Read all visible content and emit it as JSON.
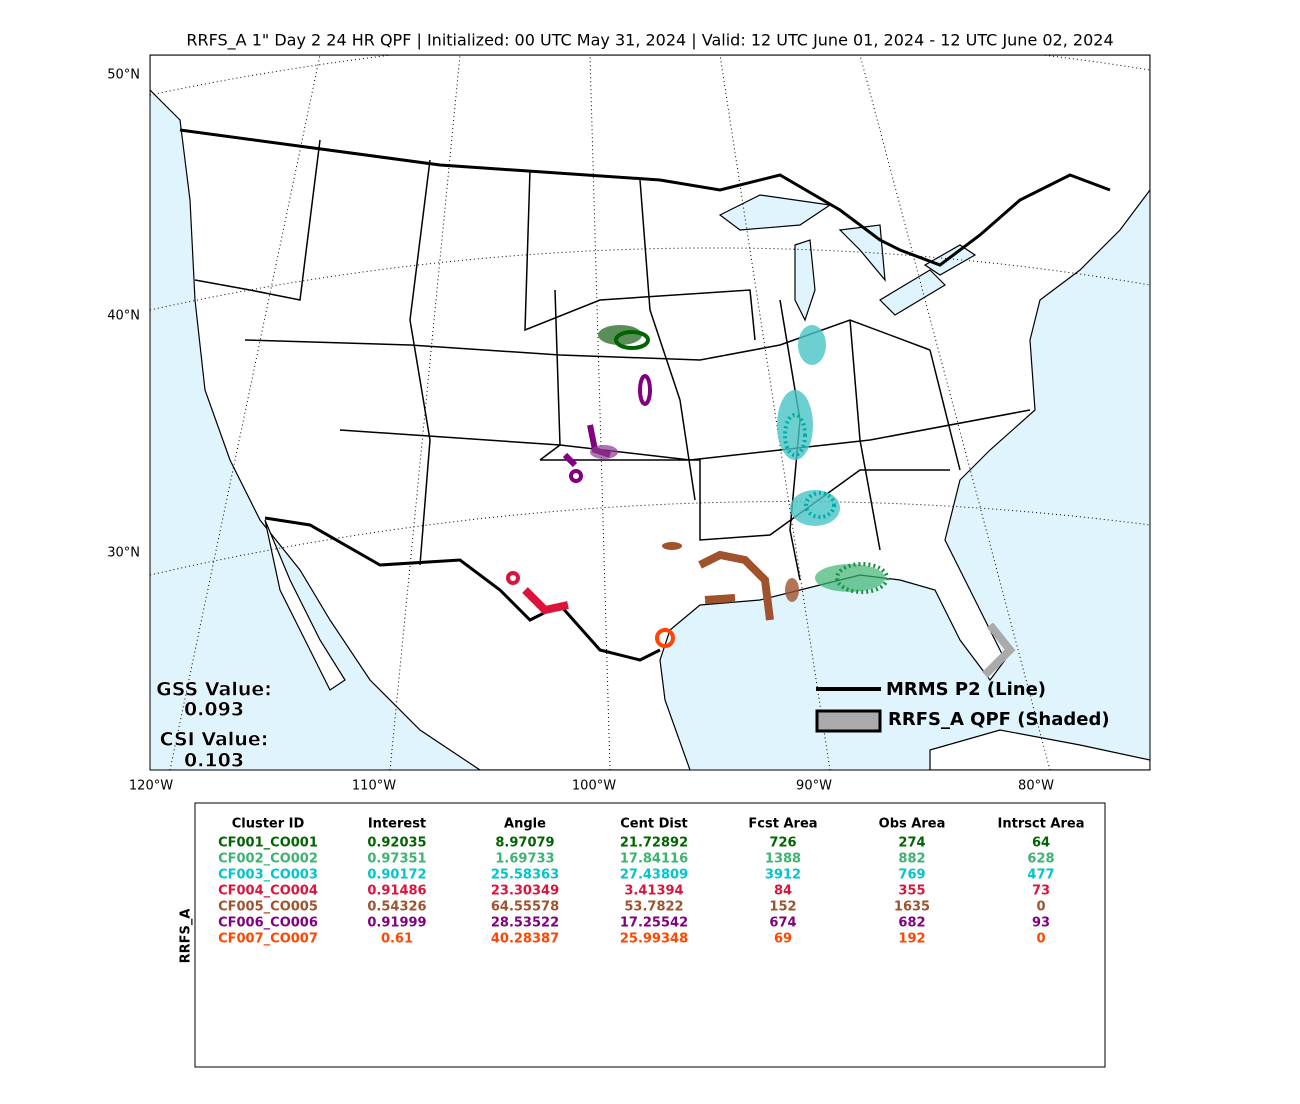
{
  "title": "RRFS_A 1\" Day 2 24 HR QPF | Initialized: 00 UTC May 31, 2024 | Valid: 12 UTC June 01, 2024 - 12 UTC June 02, 2024",
  "map": {
    "lat_labels": [
      "50°N",
      "40°N",
      "30°N"
    ],
    "lon_labels": [
      "120°W",
      "110°W",
      "100°W",
      "90°W",
      "80°W"
    ],
    "gss_label": "GSS Value:",
    "gss_value": "0.093",
    "csi_label": "CSI Value:",
    "csi_value": "0.103",
    "legend": [
      "MRMS P2 (Line)",
      "RRFS_A QPF (Shaded)"
    ]
  },
  "table": {
    "side_label": "RRFS_A",
    "columns": [
      "Cluster ID",
      "Interest",
      "Angle",
      "Cent Dist",
      "Fcst Area",
      "Obs Area",
      "Intrsct Area"
    ],
    "row_colors": [
      "#006400",
      "#3cb371",
      "#00c5cd",
      "#dc143c",
      "#a0522d",
      "#800080",
      "#ff4500"
    ],
    "rows": [
      [
        "CF001_CO001",
        "0.92035",
        "8.97079",
        "21.72892",
        "726",
        "274",
        "64"
      ],
      [
        "CF002_CO002",
        "0.97351",
        "1.69733",
        "17.84116",
        "1388",
        "882",
        "628"
      ],
      [
        "CF003_CO003",
        "0.90172",
        "25.58363",
        "27.43809",
        "3912",
        "769",
        "477"
      ],
      [
        "CF004_CO004",
        "0.91486",
        "23.30349",
        "3.41394",
        "84",
        "355",
        "73"
      ],
      [
        "CF005_CO005",
        "0.54326",
        "64.55578",
        "53.7822",
        "152",
        "1635",
        "0"
      ],
      [
        "CF006_CO006",
        "0.91999",
        "28.53522",
        "17.25542",
        "674",
        "682",
        "93"
      ],
      [
        "CF007_CO007",
        "0.61",
        "40.28387",
        "25.99348",
        "69",
        "192",
        "0"
      ]
    ]
  }
}
